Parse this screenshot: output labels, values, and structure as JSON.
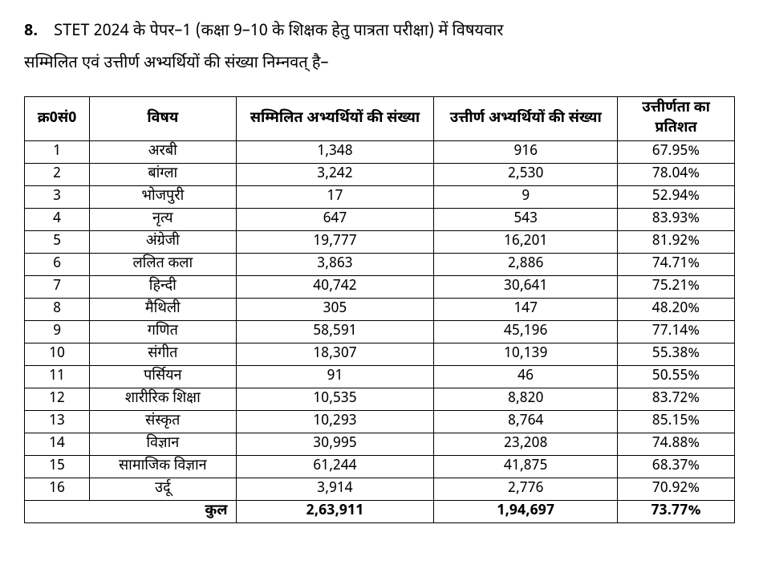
{
  "intro": {
    "item_number": "8.",
    "text_line1": "STET 2024 के पेपर–1 (कक्षा 9–10 के शिक्षक हेतु पात्रता परीक्षा) में विषयवार",
    "text_line2": "सम्मिलित एवं उत्तीर्ण अभ्यर्थियों की संख्या निम्नवत् है–"
  },
  "table": {
    "headers": {
      "sn": "क्र0सं0",
      "subject": "विषय",
      "appeared": "सम्मिलित अभ्यर्थियों की संख्या",
      "passed": "उत्तीर्ण अभ्यर्थियों की संख्या",
      "percent": "उत्तीर्णता का प्रतिशत"
    },
    "rows": [
      {
        "sn": "1",
        "subject": "अरबी",
        "appeared": "1,348",
        "passed": "916",
        "percent": "67.95%"
      },
      {
        "sn": "2",
        "subject": "बांग्ला",
        "appeared": "3,242",
        "passed": "2,530",
        "percent": "78.04%"
      },
      {
        "sn": "3",
        "subject": "भोजपुरी",
        "appeared": "17",
        "passed": "9",
        "percent": "52.94%"
      },
      {
        "sn": "4",
        "subject": "नृत्य",
        "appeared": "647",
        "passed": "543",
        "percent": "83.93%"
      },
      {
        "sn": "5",
        "subject": "अंग्रेजी",
        "appeared": "19,777",
        "passed": "16,201",
        "percent": "81.92%"
      },
      {
        "sn": "6",
        "subject": "ललित कला",
        "appeared": "3,863",
        "passed": "2,886",
        "percent": "74.71%"
      },
      {
        "sn": "7",
        "subject": "हिन्दी",
        "appeared": "40,742",
        "passed": "30,641",
        "percent": "75.21%"
      },
      {
        "sn": "8",
        "subject": "मैथिली",
        "appeared": "305",
        "passed": "147",
        "percent": "48.20%"
      },
      {
        "sn": "9",
        "subject": "गणित",
        "appeared": "58,591",
        "passed": "45,196",
        "percent": "77.14%"
      },
      {
        "sn": "10",
        "subject": "संगीत",
        "appeared": "18,307",
        "passed": "10,139",
        "percent": "55.38%"
      },
      {
        "sn": "11",
        "subject": "पर्सियन",
        "appeared": "91",
        "passed": "46",
        "percent": "50.55%"
      },
      {
        "sn": "12",
        "subject": "शारीरिक शिक्षा",
        "appeared": "10,535",
        "passed": "8,820",
        "percent": "83.72%"
      },
      {
        "sn": "13",
        "subject": "संस्कृत",
        "appeared": "10,293",
        "passed": "8,764",
        "percent": "85.15%"
      },
      {
        "sn": "14",
        "subject": "विज्ञान",
        "appeared": "30,995",
        "passed": "23,208",
        "percent": "74.88%"
      },
      {
        "sn": "15",
        "subject": "सामाजिक विज्ञान",
        "appeared": "61,244",
        "passed": "41,875",
        "percent": "68.37%"
      },
      {
        "sn": "16",
        "subject": "उर्दू",
        "appeared": "3,914",
        "passed": "2,776",
        "percent": "70.92%"
      }
    ],
    "total": {
      "label": "कुल",
      "appeared": "2,63,911",
      "passed": "1,94,697",
      "percent": "73.77%"
    }
  }
}
